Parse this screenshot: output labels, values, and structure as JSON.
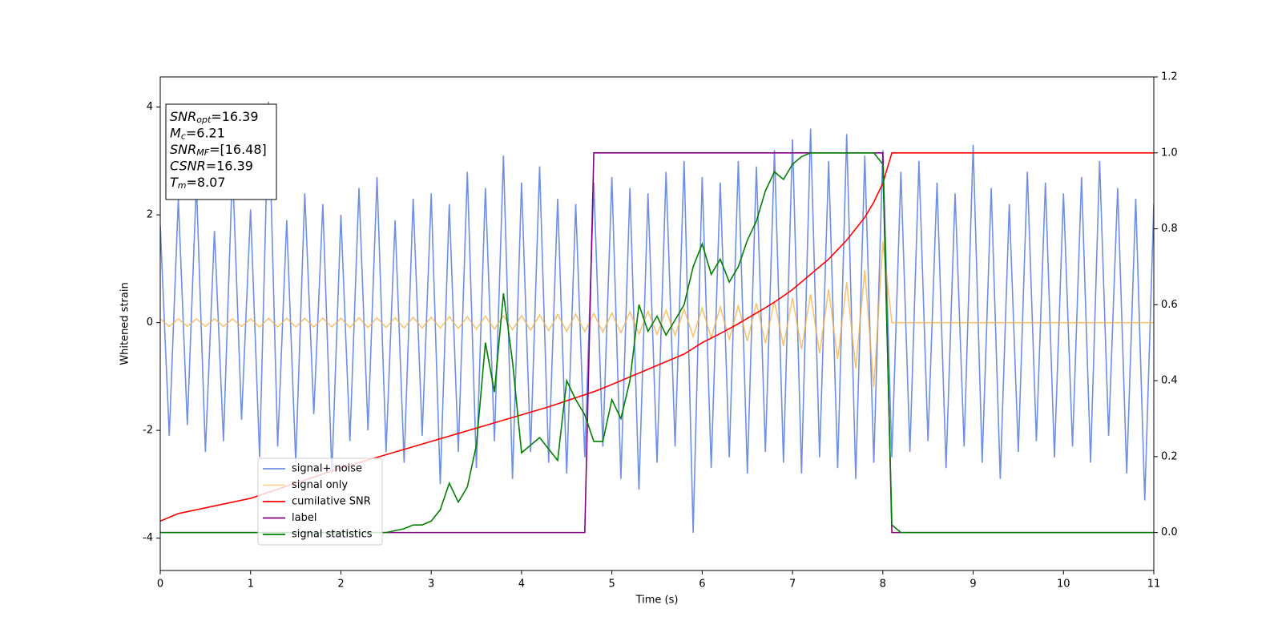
{
  "chart_data": {
    "type": "line",
    "xlabel": "Time (s)",
    "ylabel": "Whitened strain",
    "xlim": [
      0,
      11
    ],
    "ylim": [
      -4.6,
      4.56
    ],
    "y2lim": [
      -0.1,
      1.2
    ],
    "xticks": [
      0,
      1,
      2,
      3,
      4,
      5,
      6,
      7,
      8,
      9,
      10,
      11
    ],
    "yticks": [
      -4,
      -2,
      0,
      2,
      4
    ],
    "y2ticks": [
      {
        "value": 0,
        "label": "0.0"
      },
      0.2,
      0.4,
      0.6,
      0.8,
      {
        "value": 1,
        "label": "1.0"
      },
      1.2
    ],
    "grid": false,
    "legend": "lower left",
    "annotations": [
      {
        "symbol": "SNR",
        "sub": "opt",
        "text": "=16.39"
      },
      {
        "symbol": "M",
        "sub": "c",
        "text": "=6.21"
      },
      {
        "symbol": "SNR",
        "sub": "MF",
        "text": "=[16.48]"
      },
      {
        "symbol": "CSNR",
        "text": "=16.39"
      },
      {
        "symbol": "T",
        "sub": "m",
        "text": "=8.07"
      }
    ],
    "x": [
      0,
      0.1,
      0.2,
      0.3,
      0.4,
      0.5,
      0.6,
      0.7,
      0.8,
      0.9,
      1,
      1.1,
      1.2,
      1.3,
      1.4,
      1.5,
      1.6,
      1.7,
      1.8,
      1.9,
      2,
      2.1,
      2.2,
      2.3,
      2.4,
      2.5,
      2.6,
      2.7,
      2.8,
      2.9,
      3,
      3.1,
      3.2,
      3.3,
      3.4,
      3.5,
      3.6,
      3.7,
      3.8,
      3.9,
      4,
      4.1,
      4.2,
      4.3,
      4.4,
      4.5,
      4.6,
      4.7,
      4.8,
      4.9,
      5,
      5.1,
      5.2,
      5.3,
      5.4,
      5.5,
      5.6,
      5.7,
      5.8,
      5.9,
      6,
      6.1,
      6.2,
      6.3,
      6.4,
      6.5,
      6.6,
      6.7,
      6.8,
      6.9,
      7,
      7.1,
      7.2,
      7.3,
      7.4,
      7.5,
      7.6,
      7.7,
      7.8,
      7.9,
      8,
      8.1,
      8.2,
      8.3,
      8.4,
      8.5,
      8.6,
      8.7,
      8.8,
      8.9,
      9,
      9.1,
      9.2,
      9.3,
      9.4,
      9.5,
      9.6,
      9.7,
      9.8,
      9.9,
      10,
      10.1,
      10.2,
      10.3,
      10.4,
      10.5,
      10.6,
      10.7,
      10.8,
      10.9,
      11
    ],
    "series": [
      {
        "name": "signal+ noise",
        "color": "#6f8fe6",
        "values": [
          1.8,
          -2.1,
          2.3,
          -1.9,
          2.6,
          -2.4,
          1.7,
          -2.2,
          2.9,
          -1.8,
          2.1,
          -2.5,
          4.1,
          -2.3,
          1.9,
          -2.6,
          2.4,
          -1.7,
          2.2,
          -2.8,
          2.0,
          -2.2,
          2.5,
          -2.0,
          2.7,
          -2.4,
          1.9,
          -2.6,
          2.3,
          -2.1,
          2.4,
          -3.0,
          2.2,
          -2.4,
          2.8,
          -2.7,
          2.5,
          -2.2,
          3.1,
          -2.9,
          2.6,
          -2.4,
          2.9,
          -2.6,
          2.3,
          -2.8,
          2.2,
          -2.5,
          2.6,
          -2.3,
          2.7,
          -2.9,
          2.5,
          -3.1,
          2.4,
          -2.6,
          2.8,
          -2.3,
          3.0,
          -3.9,
          2.7,
          -2.7,
          2.6,
          -2.5,
          3.0,
          -2.8,
          2.9,
          -2.4,
          3.2,
          -2.6,
          3.4,
          -2.8,
          3.6,
          -2.5,
          3.0,
          -2.7,
          3.5,
          -2.9,
          3.1,
          -2.6,
          3.2,
          -2.5,
          2.8,
          -2.4,
          3.0,
          -2.2,
          2.6,
          -2.7,
          2.4,
          -2.3,
          3.3,
          -2.6,
          2.5,
          -2.9,
          2.2,
          -2.4,
          2.8,
          -2.2,
          2.6,
          -2.5,
          2.4,
          -2.3,
          2.7,
          -2.6,
          3.0,
          -2.1,
          2.5,
          -2.8,
          2.3,
          -3.3,
          2.2
        ]
      },
      {
        "name": "signal only",
        "color": "#f5b041",
        "values": [
          0.07,
          -0.07,
          0.07,
          -0.07,
          0.07,
          -0.07,
          0.07,
          -0.07,
          0.07,
          -0.07,
          0.07,
          -0.08,
          0.08,
          -0.08,
          0.08,
          -0.08,
          0.08,
          -0.08,
          0.08,
          -0.08,
          0.08,
          -0.09,
          0.09,
          -0.09,
          0.09,
          -0.09,
          0.09,
          -0.1,
          0.1,
          -0.1,
          0.1,
          -0.1,
          0.11,
          -0.11,
          0.11,
          -0.12,
          0.12,
          -0.12,
          0.13,
          -0.13,
          0.13,
          -0.14,
          0.14,
          -0.15,
          0.15,
          -0.16,
          0.16,
          -0.17,
          0.17,
          -0.18,
          0.18,
          -0.19,
          0.2,
          -0.21,
          0.21,
          -0.22,
          0.23,
          -0.24,
          0.25,
          -0.26,
          0.27,
          -0.28,
          0.29,
          -0.31,
          0.32,
          -0.34,
          0.36,
          -0.38,
          0.4,
          -0.43,
          0.46,
          -0.49,
          0.53,
          -0.57,
          0.62,
          -0.68,
          0.75,
          -0.85,
          0.98,
          -1.2,
          1.5,
          0,
          0,
          0,
          0,
          0,
          0,
          0,
          0,
          0,
          0,
          0,
          0,
          0,
          0,
          0,
          0,
          0,
          0,
          0,
          0,
          0,
          0,
          0,
          0,
          0,
          0,
          0,
          0,
          0,
          0
        ]
      },
      {
        "name": "cumilative SNR",
        "color": "#ff0000",
        "axis": "y2",
        "values": [
          0.03,
          0.04,
          0.05,
          0.055,
          0.06,
          0.065,
          0.07,
          0.075,
          0.08,
          0.085,
          0.09,
          0.098,
          0.106,
          0.114,
          0.122,
          0.13,
          0.138,
          0.146,
          0.154,
          0.162,
          0.17,
          0.177,
          0.184,
          0.191,
          0.198,
          0.205,
          0.212,
          0.219,
          0.226,
          0.233,
          0.24,
          0.247,
          0.254,
          0.261,
          0.268,
          0.275,
          0.282,
          0.289,
          0.296,
          0.303,
          0.31,
          0.317,
          0.324,
          0.331,
          0.339,
          0.347,
          0.355,
          0.363,
          0.371,
          0.38,
          0.39,
          0.4,
          0.41,
          0.42,
          0.43,
          0.44,
          0.45,
          0.46,
          0.47,
          0.485,
          0.5,
          0.512,
          0.524,
          0.537,
          0.55,
          0.564,
          0.578,
          0.592,
          0.607,
          0.623,
          0.64,
          0.66,
          0.68,
          0.7,
          0.72,
          0.745,
          0.77,
          0.8,
          0.83,
          0.87,
          0.92,
          1,
          1,
          1,
          1,
          1,
          1,
          1,
          1,
          1,
          1,
          1,
          1,
          1,
          1,
          1,
          1,
          1,
          1,
          1,
          1,
          1,
          1,
          1,
          1,
          1,
          1,
          1,
          1,
          1,
          1
        ]
      },
      {
        "name": "label",
        "color": "#800080",
        "axis": "y2",
        "values": [
          0,
          0,
          0,
          0,
          0,
          0,
          0,
          0,
          0,
          0,
          0,
          0,
          0,
          0,
          0,
          0,
          0,
          0,
          0,
          0,
          0,
          0,
          0,
          0,
          0,
          0,
          0,
          0,
          0,
          0,
          0,
          0,
          0,
          0,
          0,
          0,
          0,
          0,
          0,
          0,
          0,
          0,
          0,
          0,
          0,
          0,
          0,
          0,
          1,
          1,
          1,
          1,
          1,
          1,
          1,
          1,
          1,
          1,
          1,
          1,
          1,
          1,
          1,
          1,
          1,
          1,
          1,
          1,
          1,
          1,
          1,
          1,
          1,
          1,
          1,
          1,
          1,
          1,
          1,
          1,
          1,
          0,
          0,
          0,
          0,
          0,
          0,
          0,
          0,
          0,
          0,
          0,
          0,
          0,
          0,
          0,
          0,
          0,
          0,
          0,
          0,
          0,
          0,
          0,
          0,
          0,
          0,
          0,
          0,
          0,
          0
        ]
      },
      {
        "name": "signal statistics",
        "color": "#008000",
        "axis": "y2",
        "values": [
          0,
          0,
          0,
          0,
          0,
          0,
          0,
          0,
          0,
          0,
          0,
          0,
          0,
          0,
          0,
          0,
          0,
          0,
          0,
          0,
          0,
          0,
          0,
          0,
          0,
          0,
          0.005,
          0.01,
          0.02,
          0.02,
          0.03,
          0.06,
          0.13,
          0.08,
          0.12,
          0.23,
          0.5,
          0.37,
          0.63,
          0.45,
          0.21,
          0.23,
          0.25,
          0.22,
          0.19,
          0.4,
          0.35,
          0.31,
          0.24,
          0.24,
          0.35,
          0.3,
          0.4,
          0.6,
          0.53,
          0.57,
          0.52,
          0.56,
          0.6,
          0.7,
          0.76,
          0.68,
          0.72,
          0.66,
          0.7,
          0.77,
          0.82,
          0.9,
          0.95,
          0.93,
          0.97,
          0.99,
          1,
          1,
          1,
          1,
          1,
          1,
          1,
          1,
          0.97,
          0.02,
          0,
          0,
          0,
          0,
          0,
          0,
          0,
          0,
          0,
          0,
          0,
          0,
          0,
          0,
          0,
          0,
          0,
          0,
          0,
          0,
          0,
          0,
          0,
          0,
          0,
          0,
          0,
          0,
          0
        ]
      }
    ]
  }
}
